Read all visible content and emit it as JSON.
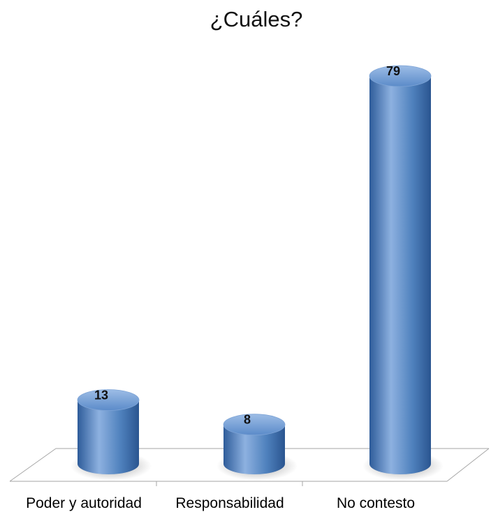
{
  "chart_data": {
    "type": "bar",
    "title": "¿Cuáles?",
    "categories": [
      "Poder y autoridad",
      "Responsabilidad",
      "No contesto"
    ],
    "values": [
      13,
      8,
      79
    ],
    "data_labels": [
      "13",
      "8",
      "79"
    ],
    "xlabel": "",
    "ylabel": "",
    "ylim": [
      0,
      79
    ],
    "grid": false,
    "legend": "none",
    "style": "3d-cylinder",
    "bar_color": "#4f81bd",
    "bar_color_dark": "#2e5c9a",
    "bar_color_light": "#8db1e0"
  }
}
